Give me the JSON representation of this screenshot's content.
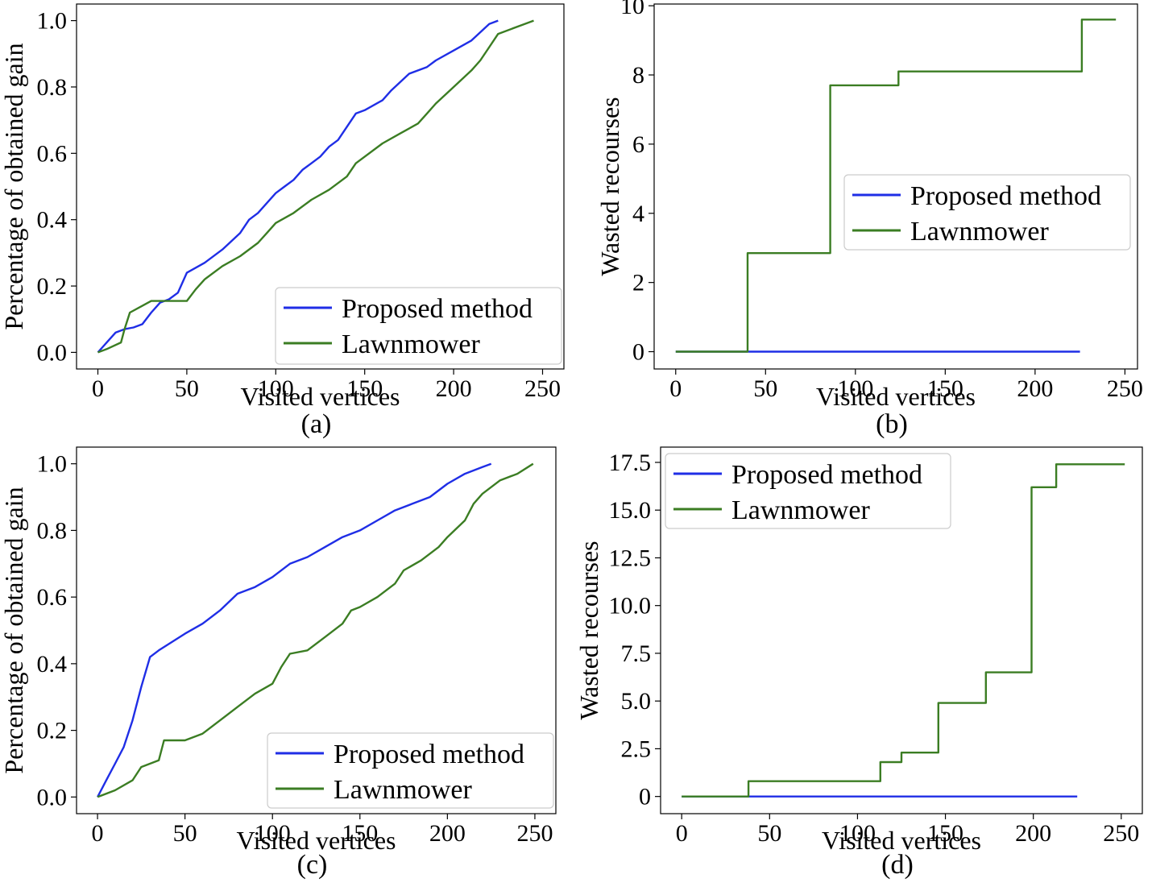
{
  "colors": {
    "proposed": "#1f2ee6",
    "lawnmower": "#3b7d23"
  },
  "chart_data": [
    {
      "panel": "(a)",
      "type": "line",
      "xlabel": "Visited vertices",
      "ylabel": "Percentage of obtained gain",
      "xlim": [
        -12,
        262
      ],
      "ylim": [
        -0.05,
        1.05
      ],
      "xticks": [
        0,
        50,
        100,
        150,
        200,
        250
      ],
      "yticks": [
        0.0,
        0.2,
        0.4,
        0.6,
        0.8,
        1.0
      ],
      "ytick_labels": [
        "0.0",
        "0.2",
        "0.4",
        "0.6",
        "0.8",
        "1.0"
      ],
      "legend": "lower-right",
      "series": [
        {
          "name": "Proposed method",
          "color": "#1f2ee6",
          "step": false,
          "points": [
            [
              0,
              0
            ],
            [
              5,
              0.03
            ],
            [
              10,
              0.06
            ],
            [
              15,
              0.07
            ],
            [
              20,
              0.075
            ],
            [
              25,
              0.085
            ],
            [
              30,
              0.12
            ],
            [
              35,
              0.15
            ],
            [
              40,
              0.16
            ],
            [
              45,
              0.18
            ],
            [
              50,
              0.24
            ],
            [
              60,
              0.27
            ],
            [
              70,
              0.31
            ],
            [
              80,
              0.36
            ],
            [
              85,
              0.4
            ],
            [
              90,
              0.42
            ],
            [
              100,
              0.48
            ],
            [
              105,
              0.5
            ],
            [
              110,
              0.52
            ],
            [
              115,
              0.55
            ],
            [
              120,
              0.57
            ],
            [
              125,
              0.59
            ],
            [
              130,
              0.62
            ],
            [
              135,
              0.64
            ],
            [
              140,
              0.68
            ],
            [
              145,
              0.72
            ],
            [
              150,
              0.73
            ],
            [
              160,
              0.76
            ],
            [
              165,
              0.79
            ],
            [
              175,
              0.84
            ],
            [
              185,
              0.86
            ],
            [
              190,
              0.88
            ],
            [
              200,
              0.91
            ],
            [
              210,
              0.94
            ],
            [
              220,
              0.99
            ],
            [
              225,
              1.0
            ]
          ]
        },
        {
          "name": "Lawnmower",
          "color": "#3b7d23",
          "step": false,
          "points": [
            [
              0,
              0
            ],
            [
              5,
              0.01
            ],
            [
              13,
              0.03
            ],
            [
              15,
              0.07
            ],
            [
              18,
              0.12
            ],
            [
              30,
              0.155
            ],
            [
              50,
              0.155
            ],
            [
              55,
              0.19
            ],
            [
              60,
              0.22
            ],
            [
              70,
              0.26
            ],
            [
              80,
              0.29
            ],
            [
              90,
              0.33
            ],
            [
              95,
              0.36
            ],
            [
              100,
              0.39
            ],
            [
              110,
              0.42
            ],
            [
              120,
              0.46
            ],
            [
              130,
              0.49
            ],
            [
              140,
              0.53
            ],
            [
              145,
              0.57
            ],
            [
              160,
              0.63
            ],
            [
              170,
              0.66
            ],
            [
              180,
              0.69
            ],
            [
              185,
              0.72
            ],
            [
              190,
              0.75
            ],
            [
              200,
              0.8
            ],
            [
              210,
              0.85
            ],
            [
              215,
              0.88
            ],
            [
              220,
              0.92
            ],
            [
              225,
              0.96
            ],
            [
              240,
              0.99
            ],
            [
              245,
              1.0
            ]
          ]
        }
      ]
    },
    {
      "panel": "(b)",
      "type": "line",
      "xlabel": "Visited vertices",
      "ylabel": "Wasted recourses",
      "xlim": [
        -12,
        257
      ],
      "ylim": [
        -0.5,
        10.05
      ],
      "xticks": [
        0,
        50,
        100,
        150,
        200,
        250
      ],
      "yticks": [
        0,
        2,
        4,
        6,
        8,
        10
      ],
      "ytick_labels": [
        "0",
        "2",
        "4",
        "6",
        "8",
        "10"
      ],
      "legend": "center-right",
      "series": [
        {
          "name": "Proposed method",
          "color": "#1f2ee6",
          "step": true,
          "points": [
            [
              0,
              0
            ],
            [
              225,
              0
            ]
          ]
        },
        {
          "name": "Lawnmower",
          "color": "#3b7d23",
          "step": true,
          "points": [
            [
              0,
              0
            ],
            [
              40,
              0
            ],
            [
              40,
              2.85
            ],
            [
              86,
              2.85
            ],
            [
              86,
              7.7
            ],
            [
              124,
              7.7
            ],
            [
              124,
              8.1
            ],
            [
              226,
              8.1
            ],
            [
              226,
              9.6
            ],
            [
              245,
              9.6
            ]
          ]
        }
      ]
    },
    {
      "panel": "(c)",
      "type": "line",
      "xlabel": "Visited vertices",
      "ylabel": "Percentage of obtained gain",
      "xlim": [
        -12,
        262
      ],
      "ylim": [
        -0.05,
        1.05
      ],
      "xticks": [
        0,
        50,
        100,
        150,
        200,
        250
      ],
      "yticks": [
        0.0,
        0.2,
        0.4,
        0.6,
        0.8,
        1.0
      ],
      "ytick_labels": [
        "0.0",
        "0.2",
        "0.4",
        "0.6",
        "0.8",
        "1.0"
      ],
      "legend": "lower-right",
      "series": [
        {
          "name": "Proposed method",
          "color": "#1f2ee6",
          "step": false,
          "points": [
            [
              0,
              0
            ],
            [
              5,
              0.05
            ],
            [
              10,
              0.1
            ],
            [
              15,
              0.15
            ],
            [
              20,
              0.23
            ],
            [
              25,
              0.33
            ],
            [
              30,
              0.42
            ],
            [
              35,
              0.44
            ],
            [
              50,
              0.49
            ],
            [
              60,
              0.52
            ],
            [
              70,
              0.56
            ],
            [
              80,
              0.61
            ],
            [
              90,
              0.63
            ],
            [
              100,
              0.66
            ],
            [
              110,
              0.7
            ],
            [
              120,
              0.72
            ],
            [
              130,
              0.75
            ],
            [
              140,
              0.78
            ],
            [
              150,
              0.8
            ],
            [
              160,
              0.83
            ],
            [
              170,
              0.86
            ],
            [
              180,
              0.88
            ],
            [
              190,
              0.9
            ],
            [
              200,
              0.94
            ],
            [
              210,
              0.97
            ],
            [
              220,
              0.99
            ],
            [
              225,
              1.0
            ]
          ]
        },
        {
          "name": "Lawnmower",
          "color": "#3b7d23",
          "step": false,
          "points": [
            [
              0,
              0
            ],
            [
              10,
              0.02
            ],
            [
              20,
              0.05
            ],
            [
              25,
              0.09
            ],
            [
              35,
              0.11
            ],
            [
              38,
              0.17
            ],
            [
              50,
              0.17
            ],
            [
              60,
              0.19
            ],
            [
              70,
              0.23
            ],
            [
              80,
              0.27
            ],
            [
              90,
              0.31
            ],
            [
              100,
              0.34
            ],
            [
              105,
              0.39
            ],
            [
              110,
              0.43
            ],
            [
              120,
              0.44
            ],
            [
              130,
              0.48
            ],
            [
              140,
              0.52
            ],
            [
              145,
              0.56
            ],
            [
              150,
              0.57
            ],
            [
              160,
              0.6
            ],
            [
              170,
              0.64
            ],
            [
              175,
              0.68
            ],
            [
              185,
              0.71
            ],
            [
              195,
              0.75
            ],
            [
              200,
              0.78
            ],
            [
              210,
              0.83
            ],
            [
              215,
              0.88
            ],
            [
              220,
              0.91
            ],
            [
              230,
              0.95
            ],
            [
              240,
              0.97
            ],
            [
              249,
              1.0
            ]
          ]
        }
      ]
    },
    {
      "panel": "(d)",
      "type": "line",
      "xlabel": "Visited vertices",
      "ylabel": "Wasted recourses",
      "xlim": [
        -12,
        262
      ],
      "ylim": [
        -0.9,
        18.3
      ],
      "xticks": [
        0,
        50,
        100,
        150,
        200,
        250
      ],
      "yticks": [
        0,
        2.5,
        5.0,
        7.5,
        10.0,
        12.5,
        15.0,
        17.5
      ],
      "ytick_labels": [
        "0",
        "2.5",
        "5.0",
        "7.5",
        "10.0",
        "12.5",
        "15.0",
        "17.5"
      ],
      "legend": "upper-left",
      "series": [
        {
          "name": "Proposed method",
          "color": "#1f2ee6",
          "step": true,
          "points": [
            [
              0,
              0
            ],
            [
              225,
              0
            ]
          ]
        },
        {
          "name": "Lawnmower",
          "color": "#3b7d23",
          "step": true,
          "points": [
            [
              0,
              0
            ],
            [
              38,
              0
            ],
            [
              38,
              0.8
            ],
            [
              113,
              0.8
            ],
            [
              113,
              1.8
            ],
            [
              125,
              1.8
            ],
            [
              125,
              2.3
            ],
            [
              146,
              2.3
            ],
            [
              146,
              4.9
            ],
            [
              173,
              4.9
            ],
            [
              173,
              6.5
            ],
            [
              199,
              6.5
            ],
            [
              199,
              16.2
            ],
            [
              213,
              16.2
            ],
            [
              213,
              17.4
            ],
            [
              252,
              17.4
            ]
          ]
        }
      ]
    }
  ]
}
